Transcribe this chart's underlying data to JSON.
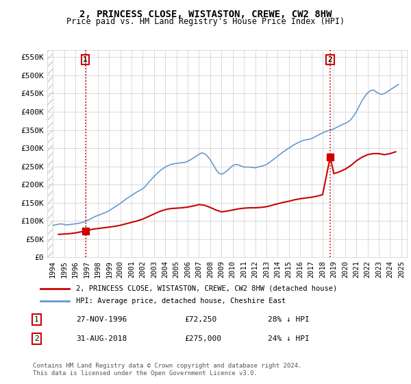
{
  "title": "2, PRINCESS CLOSE, WISTASTON, CREWE, CW2 8HW",
  "subtitle": "Price paid vs. HM Land Registry's House Price Index (HPI)",
  "legend_line1": "2, PRINCESS CLOSE, WISTASTON, CREWE, CW2 8HW (detached house)",
  "legend_line2": "HPI: Average price, detached house, Cheshire East",
  "footer": "Contains HM Land Registry data © Crown copyright and database right 2024.\nThis data is licensed under the Open Government Licence v3.0.",
  "sale1_label": "1",
  "sale2_label": "2",
  "sale1_date": "27-NOV-1996",
  "sale2_date": "31-AUG-2018",
  "sale1_price": "£72,250",
  "sale2_price": "£275,000",
  "sale1_hpi": "28% ↓ HPI",
  "sale2_hpi": "24% ↓ HPI",
  "sale1_x": 1996.9,
  "sale2_x": 2018.67,
  "sale1_y": 72250,
  "sale2_y": 275000,
  "xlim": [
    1993.5,
    2025.5
  ],
  "ylim": [
    0,
    570000
  ],
  "yticks": [
    0,
    50000,
    100000,
    150000,
    200000,
    250000,
    300000,
    350000,
    400000,
    450000,
    500000,
    550000
  ],
  "ytick_labels": [
    "£0",
    "£50K",
    "£100K",
    "£150K",
    "£200K",
    "£250K",
    "£300K",
    "£350K",
    "£400K",
    "£450K",
    "£500K",
    "£550K"
  ],
  "xticks": [
    1994,
    1995,
    1996,
    1997,
    1998,
    1999,
    2000,
    2001,
    2002,
    2003,
    2004,
    2005,
    2006,
    2007,
    2008,
    2009,
    2010,
    2011,
    2012,
    2013,
    2014,
    2015,
    2016,
    2017,
    2018,
    2019,
    2020,
    2021,
    2022,
    2023,
    2024,
    2025
  ],
  "hpi_color": "#6699cc",
  "price_color": "#cc0000",
  "marker_color": "#cc0000",
  "vline_color": "#cc0000",
  "bg_color": "#ffffff",
  "grid_color": "#cccccc",
  "label_box_color": "#cc0000",
  "hpi_data_x": [
    1994.0,
    1994.25,
    1994.5,
    1994.75,
    1995.0,
    1995.25,
    1995.5,
    1995.75,
    1996.0,
    1996.25,
    1996.5,
    1996.75,
    1997.0,
    1997.25,
    1997.5,
    1997.75,
    1998.0,
    1998.25,
    1998.5,
    1998.75,
    1999.0,
    1999.25,
    1999.5,
    1999.75,
    2000.0,
    2000.25,
    2000.5,
    2000.75,
    2001.0,
    2001.25,
    2001.5,
    2001.75,
    2002.0,
    2002.25,
    2002.5,
    2002.75,
    2003.0,
    2003.25,
    2003.5,
    2003.75,
    2004.0,
    2004.25,
    2004.5,
    2004.75,
    2005.0,
    2005.25,
    2005.5,
    2005.75,
    2006.0,
    2006.25,
    2006.5,
    2006.75,
    2007.0,
    2007.25,
    2007.5,
    2007.75,
    2008.0,
    2008.25,
    2008.5,
    2008.75,
    2009.0,
    2009.25,
    2009.5,
    2009.75,
    2010.0,
    2010.25,
    2010.5,
    2010.75,
    2011.0,
    2011.25,
    2011.5,
    2011.75,
    2012.0,
    2012.25,
    2012.5,
    2012.75,
    2013.0,
    2013.25,
    2013.5,
    2013.75,
    2014.0,
    2014.25,
    2014.5,
    2014.75,
    2015.0,
    2015.25,
    2015.5,
    2015.75,
    2016.0,
    2016.25,
    2016.5,
    2016.75,
    2017.0,
    2017.25,
    2017.5,
    2017.75,
    2018.0,
    2018.25,
    2018.5,
    2018.75,
    2019.0,
    2019.25,
    2019.5,
    2019.75,
    2020.0,
    2020.25,
    2020.5,
    2020.75,
    2021.0,
    2021.25,
    2021.5,
    2021.75,
    2022.0,
    2022.25,
    2022.5,
    2022.75,
    2023.0,
    2023.25,
    2023.5,
    2023.75,
    2024.0,
    2024.25,
    2024.5,
    2024.75
  ],
  "hpi_data_y": [
    88000,
    89000,
    91000,
    92000,
    90000,
    89000,
    90000,
    91000,
    92000,
    93000,
    95000,
    97000,
    100000,
    104000,
    108000,
    112000,
    115000,
    118000,
    121000,
    124000,
    128000,
    133000,
    138000,
    143000,
    148000,
    154000,
    160000,
    165000,
    170000,
    175000,
    180000,
    184000,
    188000,
    196000,
    205000,
    214000,
    222000,
    230000,
    237000,
    243000,
    248000,
    252000,
    255000,
    257000,
    258000,
    259000,
    260000,
    261000,
    264000,
    268000,
    273000,
    278000,
    283000,
    287000,
    285000,
    278000,
    268000,
    255000,
    242000,
    232000,
    228000,
    232000,
    238000,
    245000,
    252000,
    255000,
    254000,
    251000,
    248000,
    248000,
    248000,
    247000,
    246000,
    248000,
    250000,
    252000,
    255000,
    260000,
    266000,
    272000,
    278000,
    284000,
    290000,
    295000,
    300000,
    305000,
    310000,
    314000,
    318000,
    321000,
    323000,
    324000,
    326000,
    330000,
    334000,
    338000,
    342000,
    345000,
    348000,
    350000,
    353000,
    357000,
    361000,
    365000,
    368000,
    372000,
    378000,
    388000,
    400000,
    415000,
    430000,
    442000,
    452000,
    458000,
    460000,
    455000,
    450000,
    448000,
    450000,
    455000,
    460000,
    465000,
    470000,
    475000
  ],
  "price_data_x": [
    1994.5,
    1995.0,
    1995.5,
    1996.0,
    1996.9,
    1997.5,
    1998.0,
    1998.5,
    1999.0,
    1999.5,
    2000.0,
    2000.5,
    2001.0,
    2001.5,
    2002.0,
    2002.5,
    2003.0,
    2003.5,
    2004.0,
    2004.5,
    2005.0,
    2005.5,
    2006.0,
    2006.5,
    2007.0,
    2007.5,
    2008.0,
    2008.5,
    2009.0,
    2009.5,
    2010.0,
    2010.5,
    2011.0,
    2011.5,
    2012.0,
    2012.5,
    2013.0,
    2013.5,
    2014.0,
    2014.5,
    2015.0,
    2015.5,
    2016.0,
    2016.5,
    2017.0,
    2017.5,
    2018.0,
    2018.67,
    2019.0,
    2019.5,
    2020.0,
    2020.5,
    2021.0,
    2021.5,
    2022.0,
    2022.5,
    2023.0,
    2023.5,
    2024.0,
    2024.5
  ],
  "price_data_y": [
    63000,
    64000,
    65000,
    67000,
    72250,
    77000,
    79000,
    81000,
    83000,
    85000,
    88000,
    92000,
    96000,
    100000,
    105000,
    112000,
    119000,
    126000,
    131000,
    134000,
    135000,
    136000,
    138000,
    141000,
    145000,
    143000,
    137000,
    130000,
    125000,
    127000,
    130000,
    133000,
    135000,
    136000,
    136000,
    137000,
    139000,
    143000,
    147000,
    151000,
    154000,
    158000,
    161000,
    163000,
    165000,
    168000,
    172000,
    275000,
    230000,
    235000,
    242000,
    252000,
    265000,
    275000,
    282000,
    285000,
    285000,
    282000,
    285000,
    290000
  ],
  "hatch_end_x": 1994.0
}
